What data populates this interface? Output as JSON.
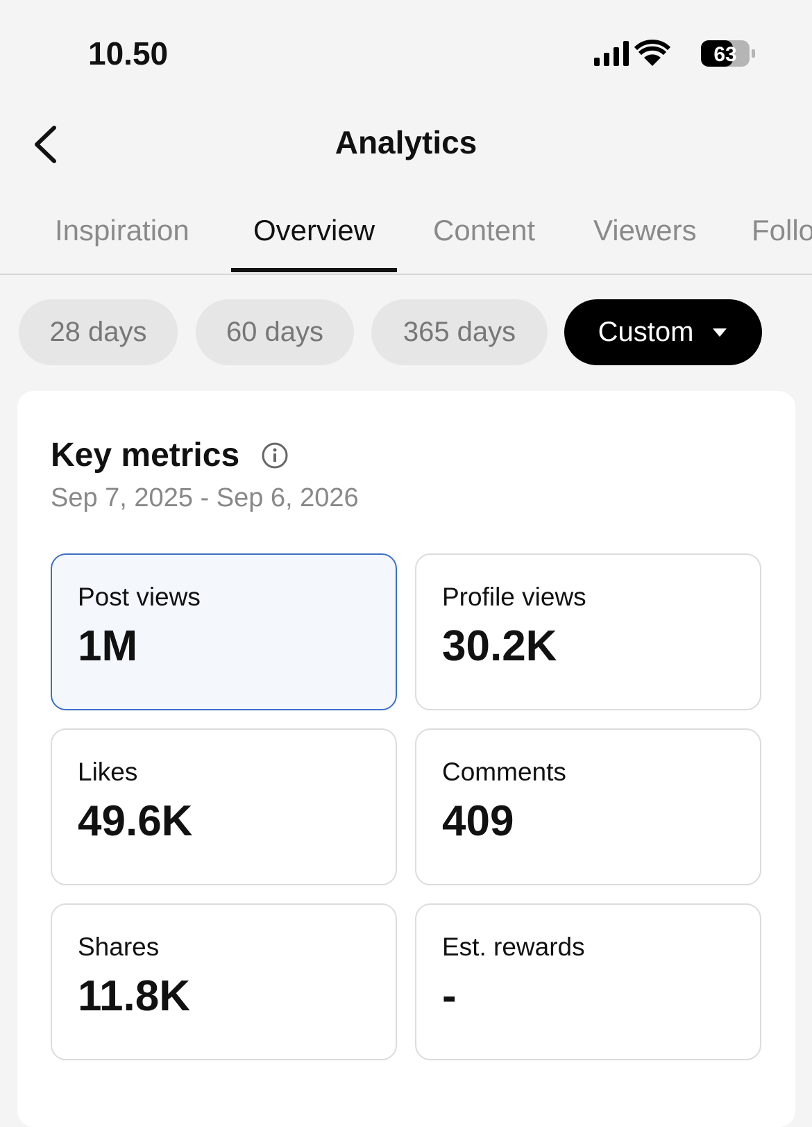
{
  "status_bar": {
    "time": "10.50",
    "battery": "63"
  },
  "header": {
    "title": "Analytics"
  },
  "tabs": {
    "items": [
      "Inspiration",
      "Overview",
      "Content",
      "Viewers",
      "Followers"
    ],
    "active": 1
  },
  "filters": {
    "items": [
      "28 days",
      "60 days",
      "365 days",
      "Custom"
    ],
    "active": 3
  },
  "card": {
    "title": "Key metrics",
    "date_range": "Sep 7, 2025 - Sep 6, 2026",
    "metrics": [
      {
        "label": "Post views",
        "value": "1M"
      },
      {
        "label": "Profile views",
        "value": "30.2K"
      },
      {
        "label": "Likes",
        "value": "49.6K"
      },
      {
        "label": "Comments",
        "value": "409"
      },
      {
        "label": "Shares",
        "value": "11.8K"
      },
      {
        "label": "Est. rewards",
        "value": "-"
      }
    ],
    "selected": 0
  }
}
